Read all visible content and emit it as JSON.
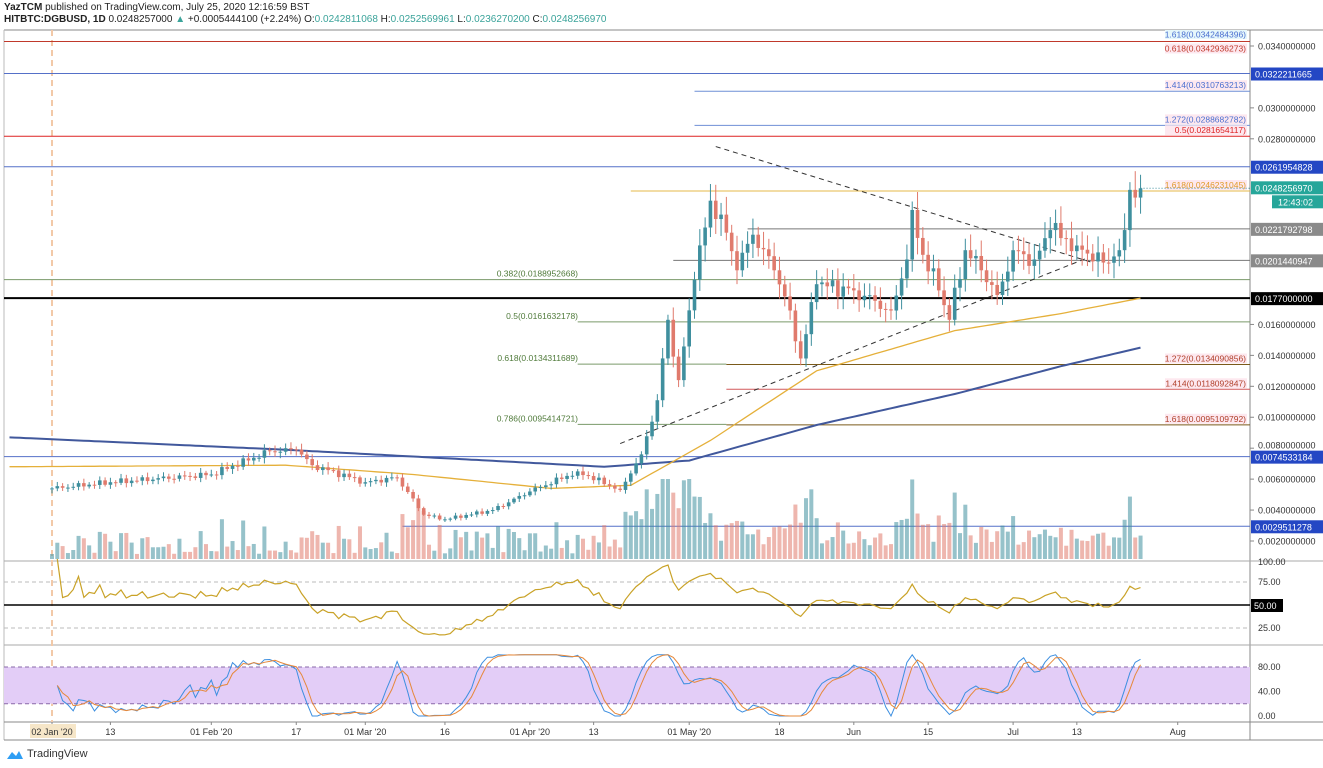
{
  "header": {
    "author": "YazTCM",
    "published": "published on TradingView.com, July 25, 2020 12:16:59 BST",
    "symbol": "HITBTC:DGBUSD, 1D",
    "last": "0.0248257000",
    "change": "+0.0005444100 (+2.24%)",
    "o_label": "O:",
    "o": "0.0242811068",
    "h_label": "H:",
    "h": "0.0252569961",
    "l_label": "L:",
    "l": "0.0236270200",
    "c_label": "C:",
    "c": "0.0248256970"
  },
  "footer": {
    "brand": "TradingView"
  },
  "colors": {
    "up": "#3f8f9e",
    "down": "#e07a6c",
    "ma50": "#e5b03a",
    "ma200": "#41589c",
    "rsi": "#c9a227",
    "stoch_k": "#3d8fe0",
    "stoch_d": "#e6883a",
    "stoch_band": "#e3cdf7"
  },
  "chart_data": {
    "type": "candlestick",
    "start_date": "2020-01-02",
    "close_keypoints": [
      [
        "2020-01-02",
        0.0054
      ],
      [
        "2020-01-13",
        0.0058
      ],
      [
        "2020-02-01",
        0.0063
      ],
      [
        "2020-02-12",
        0.0078
      ],
      [
        "2020-02-17",
        0.0079
      ],
      [
        "2020-02-20",
        0.0069
      ],
      [
        "2020-03-01",
        0.0058
      ],
      [
        "2020-03-07",
        0.0061
      ],
      [
        "2020-03-12",
        0.0037
      ],
      [
        "2020-03-16",
        0.0034
      ],
      [
        "2020-03-25",
        0.004
      ],
      [
        "2020-04-01",
        0.0052
      ],
      [
        "2020-04-10",
        0.0065
      ],
      [
        "2020-04-18",
        0.0053
      ],
      [
        "2020-04-22",
        0.0076
      ],
      [
        "2020-04-25",
        0.0111
      ],
      [
        "2020-04-27",
        0.0163
      ],
      [
        "2020-04-29",
        0.0124
      ],
      [
        "2020-05-02",
        0.0189
      ],
      [
        "2020-05-05",
        0.024
      ],
      [
        "2020-05-07",
        0.0231
      ],
      [
        "2020-05-10",
        0.0195
      ],
      [
        "2020-05-13",
        0.0218
      ],
      [
        "2020-05-17",
        0.0195
      ],
      [
        "2020-05-20",
        0.0169
      ],
      [
        "2020-05-22",
        0.0138
      ],
      [
        "2020-05-25",
        0.0186
      ],
      [
        "2020-06-01",
        0.0182
      ],
      [
        "2020-06-08",
        0.0169
      ],
      [
        "2020-06-11",
        0.0202
      ],
      [
        "2020-06-12",
        0.0234
      ],
      [
        "2020-06-14",
        0.0205
      ],
      [
        "2020-06-17",
        0.0182
      ],
      [
        "2020-06-19",
        0.0163
      ],
      [
        "2020-06-22",
        0.0208
      ],
      [
        "2020-06-25",
        0.0195
      ],
      [
        "2020-06-28",
        0.0179
      ],
      [
        "2020-07-01",
        0.0208
      ],
      [
        "2020-07-05",
        0.0202
      ],
      [
        "2020-07-08",
        0.0221
      ],
      [
        "2020-07-13",
        0.0211
      ],
      [
        "2020-07-18",
        0.02
      ],
      [
        "2020-07-21",
        0.0208
      ],
      [
        "2020-07-22",
        0.0221
      ],
      [
        "2020-07-23",
        0.0247
      ],
      [
        "2020-07-24",
        0.0242
      ],
      [
        "2020-07-25",
        0.0248
      ]
    ],
    "ma50_keypoints": [
      [
        "2019-12-25",
        0.0068
      ],
      [
        "2020-02-15",
        0.0069
      ],
      [
        "2020-03-10",
        0.0063
      ],
      [
        "2020-04-05",
        0.0054
      ],
      [
        "2020-04-20",
        0.0056
      ],
      [
        "2020-05-05",
        0.0085
      ],
      [
        "2020-05-25",
        0.013
      ],
      [
        "2020-06-20",
        0.0156
      ],
      [
        "2020-07-10",
        0.0167
      ],
      [
        "2020-07-25",
        0.0177
      ]
    ],
    "ma200_keypoints": [
      [
        "2019-12-25",
        0.0087
      ],
      [
        "2020-02-15",
        0.0079
      ],
      [
        "2020-04-15",
        0.0068
      ],
      [
        "2020-05-01",
        0.0072
      ],
      [
        "2020-05-25",
        0.0095
      ],
      [
        "2020-06-20",
        0.0115
      ],
      [
        "2020-07-10",
        0.0133
      ],
      [
        "2020-07-25",
        0.0145
      ]
    ],
    "trendlines": [
      {
        "from": [
          "2020-05-06",
          0.0275
        ],
        "to": [
          "2020-07-16",
          0.02
        ],
        "style": "dashed"
      },
      {
        "from": [
          "2020-04-18",
          0.0083
        ],
        "to": [
          "2020-07-15",
          0.0203
        ],
        "style": "dashed"
      }
    ],
    "y_axis_ticks": [
      "0.0340000000",
      "0.0300000000",
      "0.0280000000",
      "0.0160000000",
      "0.0140000000",
      "0.0120000000",
      "0.0100000000",
      "0.0080000000",
      "0.0060000000",
      "0.0040000000",
      "0.0020000000"
    ],
    "x_axis_ticks": [
      [
        "2020-01-02",
        "02 Jan '20"
      ],
      [
        "2020-01-13",
        "13"
      ],
      [
        "2020-02-01",
        "01 Feb '20"
      ],
      [
        "2020-02-17",
        "17"
      ],
      [
        "2020-03-01",
        "01 Mar '20"
      ],
      [
        "2020-03-16",
        "16"
      ],
      [
        "2020-04-01",
        "01 Apr '20"
      ],
      [
        "2020-04-13",
        "13"
      ],
      [
        "2020-05-01",
        "01 May '20"
      ],
      [
        "2020-05-18",
        "18"
      ],
      [
        "2020-06-01",
        "Jun"
      ],
      [
        "2020-06-15",
        "15"
      ],
      [
        "2020-07-01",
        "Jul"
      ],
      [
        "2020-07-13",
        "13"
      ],
      [
        "2020-08-01",
        "Aug"
      ]
    ],
    "levels": [
      {
        "price": 0.0342936273,
        "color": "#c0392b",
        "from": "2019-12-20",
        "label": "0.618(0.0342936273)",
        "label_color": "#c0392b"
      },
      {
        "price": 0.0322211665,
        "color": "#5570c8",
        "from": "2019-12-20",
        "axis_label": "0.0322211665",
        "axis_bg": "#2447c4"
      },
      {
        "price": 0.0310763213,
        "color": "#6f8fd6",
        "from": "2020-05-02",
        "label": "1.414(0.0310763213)",
        "label_color": "#4a6fd0"
      },
      {
        "price": 0.0288682782,
        "color": "#6f8fd6",
        "from": "2020-05-02",
        "label": "1.272(0.0288682782)",
        "label_color": "#4a6fd0"
      },
      {
        "price": 0.0281654117,
        "color": "#d22",
        "from": "2019-12-20",
        "label": "0.5(0.0281654117)",
        "label_color": "#d22"
      },
      {
        "price": 0.0261954828,
        "color": "#5570c8",
        "from": "2019-12-20",
        "axis_label": "0.0261954828",
        "axis_bg": "#2447c4"
      },
      {
        "price": 0.0246231045,
        "color": "#e6b84a",
        "from": "2020-04-20",
        "label": "1.618(0.0246231045)",
        "label_color": "#e09a2a"
      },
      {
        "price": 0.0221792798,
        "color": "#777",
        "from": "2020-05-12",
        "axis_label": "0.0221792798",
        "axis_bg": "#8a8a8a"
      },
      {
        "price": 0.0201440947,
        "color": "#777",
        "from": "2020-04-28",
        "axis_label": "0.0201440947",
        "axis_bg": "#8a8a8a"
      },
      {
        "price": 0.0188952668,
        "color": "#7a9a6a",
        "from": "2019-12-20",
        "label": "0.382(0.0188952668)",
        "label_color": "#4f7a3a",
        "label_side": "left"
      },
      {
        "price": 0.0177,
        "color": "#000",
        "from": "2019-12-20",
        "width": 2,
        "axis_label": "0.0177000000",
        "axis_bg": "#000"
      },
      {
        "price": 0.0161632178,
        "color": "#7a9a6a",
        "from": "2020-04-10",
        "label": "0.5(0.0161632178)",
        "label_color": "#4f7a3a",
        "label_side": "left"
      },
      {
        "price": 0.0134311689,
        "color": "#7a9a6a",
        "from": "2020-04-10",
        "to": "2020-05-08",
        "label": "0.618(0.0134311689)",
        "label_color": "#4f7a3a",
        "label_side": "left"
      },
      {
        "price": 0.0134090856,
        "color": "#7a5a1a",
        "from": "2020-05-08",
        "label": "1.272(0.0134090856)",
        "label_color": "#b0402a"
      },
      {
        "price": 0.0118092847,
        "color": "#d2585a",
        "from": "2020-05-08",
        "label": "1.414(0.0118092847)",
        "label_color": "#b0402a"
      },
      {
        "price": 0.0095414721,
        "color": "#7a9a6a",
        "from": "2020-04-10",
        "to": "2020-05-08",
        "label": "0.786(0.0095414721)",
        "label_color": "#4f7a3a",
        "label_side": "left"
      },
      {
        "price": 0.0095109792,
        "color": "#7a5a1a",
        "from": "2020-05-08",
        "label": "1.618(0.0095109792)",
        "label_color": "#b0402a"
      },
      {
        "price": 0.0074533184,
        "color": "#5570c8",
        "from": "2019-12-20",
        "axis_label": "0.0074533184",
        "axis_bg": "#2447c4"
      },
      {
        "price": 0.0029511278,
        "color": "#5570c8",
        "from": "2020-03-08",
        "axis_label": "0.0029511278",
        "axis_bg": "#2447c4"
      }
    ],
    "top_fib_label": {
      "text": "1.618(0.0342484396)",
      "color": "#4a6fd0"
    },
    "current_price_label": "0.0248256970",
    "countdown": "12:43:02",
    "rsi": {
      "period": 14,
      "ticks": [
        "100.00",
        "75.00",
        "25.00"
      ],
      "level_label": "50.00"
    },
    "stoch_rsi": {
      "ticks": [
        "80.00",
        "40.00",
        "0.00"
      ],
      "band": [
        20,
        80
      ]
    }
  }
}
